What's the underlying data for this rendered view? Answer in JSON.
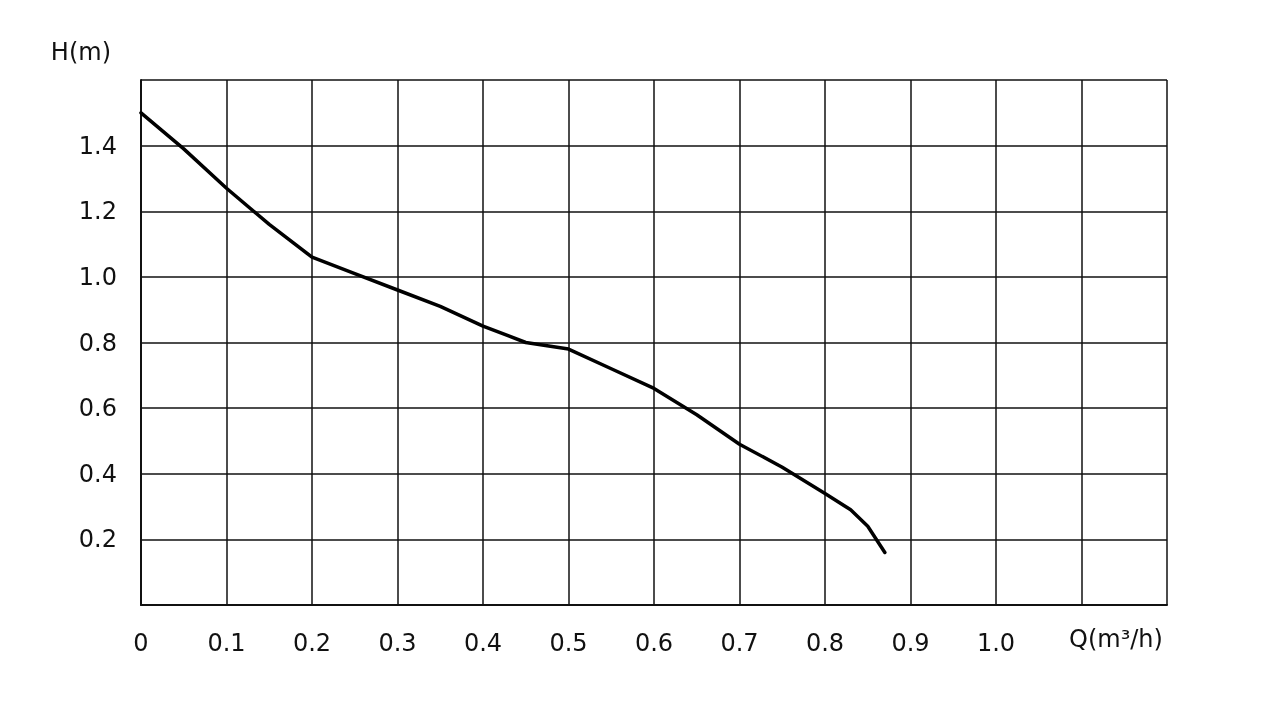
{
  "chart_data": {
    "type": "line",
    "xlabel": "Q(m³/h)",
    "ylabel": "H(m)",
    "x": [
      0,
      0.05,
      0.1,
      0.15,
      0.2,
      0.25,
      0.3,
      0.35,
      0.4,
      0.45,
      0.5,
      0.55,
      0.6,
      0.65,
      0.7,
      0.75,
      0.8,
      0.83,
      0.85,
      0.87
    ],
    "series": [
      {
        "color": "#000000",
        "values": [
          1.5,
          1.39,
          1.27,
          1.16,
          1.06,
          1.01,
          0.96,
          0.91,
          0.85,
          0.8,
          0.78,
          0.72,
          0.66,
          0.58,
          0.49,
          0.42,
          0.34,
          0.29,
          0.24,
          0.16
        ]
      }
    ],
    "xlim": [
      0,
      1.2
    ],
    "xticks": [
      0,
      0.1,
      0.2,
      0.3,
      0.4,
      0.5,
      0.6,
      0.7,
      0.8,
      0.9,
      "1.0",
      {
        "value": 1.1,
        "label": null
      },
      {
        "value": 1.2,
        "label": null
      }
    ],
    "ylim": [
      0,
      1.6
    ],
    "yticks": [
      {
        "value": 0,
        "label": null
      },
      0.2,
      0.4,
      0.6,
      0.8,
      "1.0",
      1.2,
      1.4,
      {
        "value": 1.6,
        "label": null
      }
    ],
    "grid": true,
    "marker": "none",
    "line_style": "solid"
  }
}
